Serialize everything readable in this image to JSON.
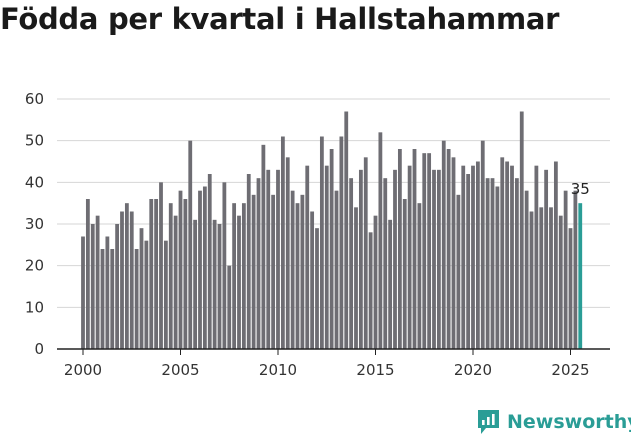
{
  "title": "Födda per kvartal i Hallstahammar",
  "brand": {
    "name": "Newsworthy",
    "icon": "newsworthy-logo-icon",
    "color": "#2a9d96"
  },
  "colors": {
    "bar": "#6e6d73",
    "highlight": "#2a9d96",
    "grid": "#d6d6d6",
    "axis": "#222222"
  },
  "chart_data": {
    "type": "bar",
    "title": "Födda per kvartal i Hallstahammar",
    "xlabel": "",
    "ylabel": "",
    "ylim": [
      0,
      60
    ],
    "yticks": [
      0,
      10,
      20,
      30,
      40,
      50,
      60
    ],
    "xtick_labels": [
      "2000",
      "2005",
      "2010",
      "2015",
      "2020",
      "2025"
    ],
    "start_year": 2000,
    "start_quarter": 1,
    "values": [
      27,
      36,
      30,
      32,
      24,
      27,
      24,
      30,
      33,
      35,
      33,
      24,
      29,
      26,
      36,
      36,
      40,
      26,
      35,
      32,
      38,
      36,
      50,
      31,
      38,
      39,
      42,
      31,
      30,
      40,
      20,
      35,
      32,
      35,
      42,
      37,
      41,
      49,
      43,
      37,
      43,
      51,
      46,
      38,
      35,
      37,
      44,
      33,
      29,
      51,
      44,
      48,
      38,
      51,
      57,
      41,
      34,
      43,
      46,
      28,
      32,
      52,
      41,
      31,
      43,
      48,
      36,
      44,
      48,
      35,
      47,
      47,
      43,
      43,
      50,
      48,
      46,
      37,
      44,
      42,
      44,
      45,
      50,
      41,
      41,
      39,
      46,
      45,
      44,
      41,
      57,
      38,
      33,
      44,
      34,
      43,
      34,
      45,
      32,
      38,
      29,
      38,
      35
    ],
    "highlight_last": true,
    "last_value_label": "35"
  }
}
